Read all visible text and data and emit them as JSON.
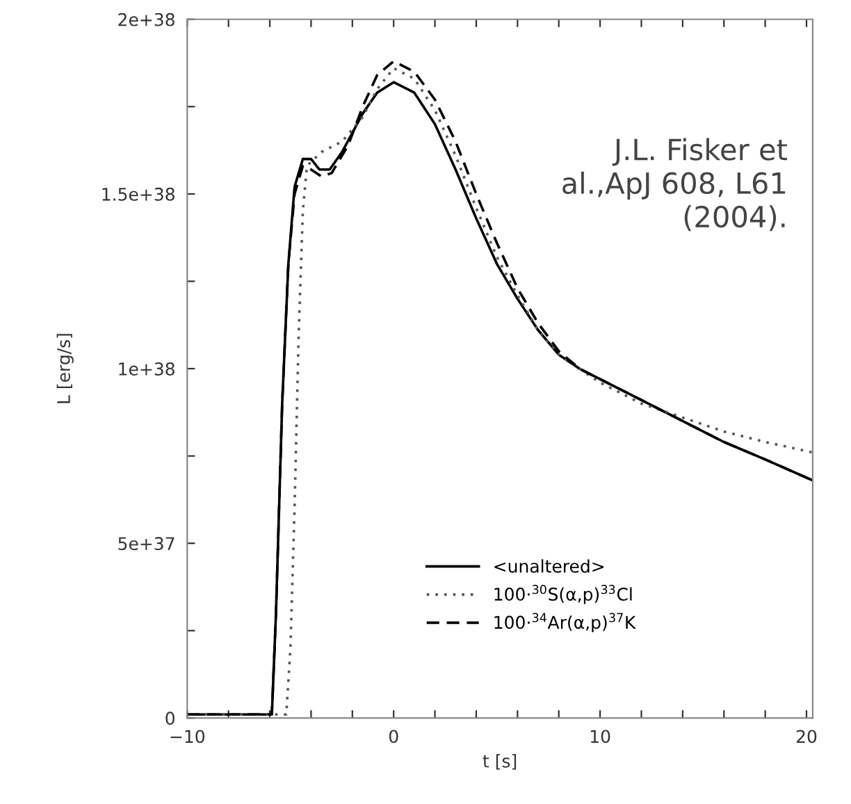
{
  "chart_data": {
    "type": "line",
    "xlabel": "t [s]",
    "ylabel": "L [erg/s]",
    "xlim": [
      -10,
      20.3
    ],
    "ylim": [
      0,
      2e+38
    ],
    "xticks": [
      -10,
      {
        "value": -8,
        "label": null
      },
      {
        "value": -6,
        "label": null
      },
      {
        "value": -4,
        "label": null
      },
      {
        "value": -2,
        "label": null
      },
      0,
      {
        "value": 2,
        "label": null
      },
      {
        "value": 4,
        "label": null
      },
      {
        "value": 6,
        "label": null
      },
      {
        "value": 8,
        "label": null
      },
      10,
      {
        "value": 12,
        "label": null
      },
      {
        "value": 14,
        "label": null
      },
      {
        "value": 16,
        "label": null
      },
      {
        "value": 18,
        "label": null
      },
      20
    ],
    "yticks": [
      0,
      {
        "value": 2.5e+37,
        "label": null
      },
      {
        "value": 5e+37,
        "label": "5e+37"
      },
      {
        "value": 7.5e+37,
        "label": null
      },
      {
        "value": 1e+38,
        "label": "1e+38"
      },
      {
        "value": 1.25e+38,
        "label": null
      },
      {
        "value": 1.5e+38,
        "label": "1.5e+38"
      },
      {
        "value": 1.75e+38,
        "label": null
      },
      {
        "value": 2e+38,
        "label": "2e+38"
      }
    ],
    "grid": false,
    "legend": "bottom",
    "marker": "none",
    "annotations": [
      "J.L. Fisker et\nal.,ApJ 608, L61\n(2004)."
    ],
    "series": [
      {
        "name": "<unaltered>",
        "color": "#000000",
        "line_style": "solid",
        "x": [
          -10,
          -5.9,
          -5.7,
          -5.4,
          -5.1,
          -4.8,
          -4.4,
          -4.0,
          -3.6,
          -3.1,
          -2.5,
          -1.5,
          -0.8,
          0,
          1,
          2,
          3,
          4,
          5,
          6,
          7,
          8,
          9,
          10,
          12,
          14,
          16,
          18,
          20.3
        ],
        "values": [
          1e+36,
          1e+36,
          3e+37,
          9e+37,
          1.3e+38,
          1.52e+38,
          1.6e+38,
          1.6e+38,
          1.57e+38,
          1.57e+38,
          1.62e+38,
          1.73e+38,
          1.79e+38,
          1.82e+38,
          1.79e+38,
          1.7e+38,
          1.57e+38,
          1.43e+38,
          1.3e+38,
          1.2e+38,
          1.11e+38,
          1.04e+38,
          1e+38,
          9.7e+37,
          9.1e+37,
          8.5e+37,
          7.9e+37,
          7.4e+37,
          6.8e+37
        ]
      },
      {
        "name": "100·$^{30}$S(α,p)$^{33}$Cl",
        "color": "#555555",
        "line_style": "dotted",
        "x": [
          -10,
          -5.2,
          -5.0,
          -4.8,
          -4.6,
          -4.4,
          -4.2,
          -3.5,
          -2.5,
          -1.5,
          -0.8,
          0,
          1,
          2,
          3,
          4,
          5,
          6,
          7,
          8,
          9,
          10,
          12,
          14,
          16,
          18,
          20.3
        ],
        "values": [
          1e+36,
          1e+36,
          2e+37,
          6e+37,
          1.1e+38,
          1.45e+38,
          1.58e+38,
          1.62e+38,
          1.65e+38,
          1.72e+38,
          1.8e+38,
          1.86e+38,
          1.83e+38,
          1.74e+38,
          1.61e+38,
          1.46e+38,
          1.32e+38,
          1.21e+38,
          1.11e+38,
          1.04e+38,
          1e+38,
          9.6e+37,
          9e+37,
          8.6e+37,
          8.2e+37,
          7.9e+37,
          7.6e+37
        ]
      },
      {
        "name": "100·$^{34}$Ar(α,p)$^{37}$K",
        "color": "#000000",
        "line_style": "dashed",
        "x": [
          -10,
          -5.9,
          -5.7,
          -5.4,
          -5.1,
          -4.8,
          -4.4,
          -4.0,
          -3.5,
          -3.0,
          -2.2,
          -1.5,
          -0.8,
          0,
          1,
          2,
          3,
          4,
          5,
          6,
          7,
          8,
          9,
          10,
          12,
          14,
          16,
          18,
          20.3
        ],
        "values": [
          1e+36,
          1e+36,
          3e+37,
          9e+37,
          1.3e+38,
          1.5e+38,
          1.58e+38,
          1.57e+38,
          1.55e+38,
          1.56e+38,
          1.64e+38,
          1.75e+38,
          1.84e+38,
          1.88e+38,
          1.85e+38,
          1.77e+38,
          1.65e+38,
          1.5e+38,
          1.36e+38,
          1.23e+38,
          1.13e+38,
          1.05e+38,
          1e+38,
          9.7e+37,
          9.1e+37,
          8.5e+37,
          7.9e+37,
          7.4e+37,
          6.8e+37
        ]
      }
    ]
  }
}
